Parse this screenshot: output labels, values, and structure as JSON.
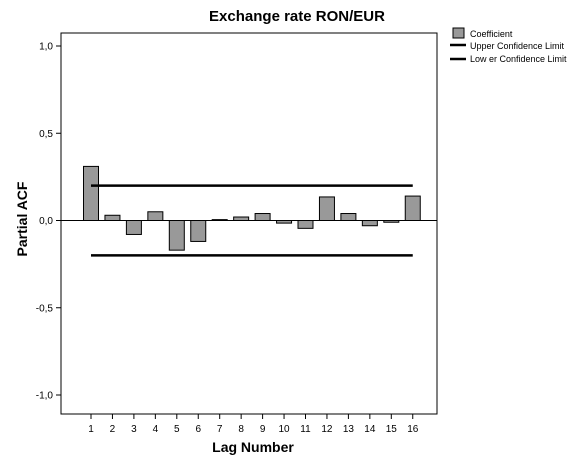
{
  "chart_data": {
    "type": "bar",
    "title": "Exchange rate RON/EUR",
    "xlabel": "Lag Number",
    "ylabel": "Partial ACF",
    "ylim": [
      -1.0,
      1.0
    ],
    "y_ticks": [
      {
        "value": 1.0,
        "label": "1,0"
      },
      {
        "value": 0.5,
        "label": "0,5"
      },
      {
        "value": 0.0,
        "label": "0,0"
      },
      {
        "value": -0.5,
        "label": "-0,5"
      },
      {
        "value": -1.0,
        "label": "-1,0"
      }
    ],
    "categories": [
      "1",
      "2",
      "3",
      "4",
      "5",
      "6",
      "7",
      "8",
      "9",
      "10",
      "11",
      "12",
      "13",
      "14",
      "15",
      "16"
    ],
    "series": [
      {
        "name": "Coefficient",
        "values": [
          0.31,
          0.03,
          -0.08,
          0.05,
          -0.17,
          -0.12,
          0.005,
          0.02,
          0.04,
          -0.015,
          -0.045,
          0.135,
          0.04,
          -0.03,
          -0.01,
          0.14
        ]
      }
    ],
    "upper_confidence_limit": 0.2,
    "lower_confidence_limit": -0.2,
    "legend": {
      "placement": "top-right",
      "entries": [
        {
          "label": "Coefficient",
          "kind": "bar"
        },
        {
          "label": "Upper Confidence Limit",
          "kind": "line"
        },
        {
          "label": "Low er Confidence Limit",
          "kind": "line"
        }
      ]
    },
    "grid": false,
    "colors": {
      "bar_fill": "#999999",
      "bar_stroke": "#000000",
      "limit_line": "#000000",
      "axis": "#000000"
    }
  }
}
